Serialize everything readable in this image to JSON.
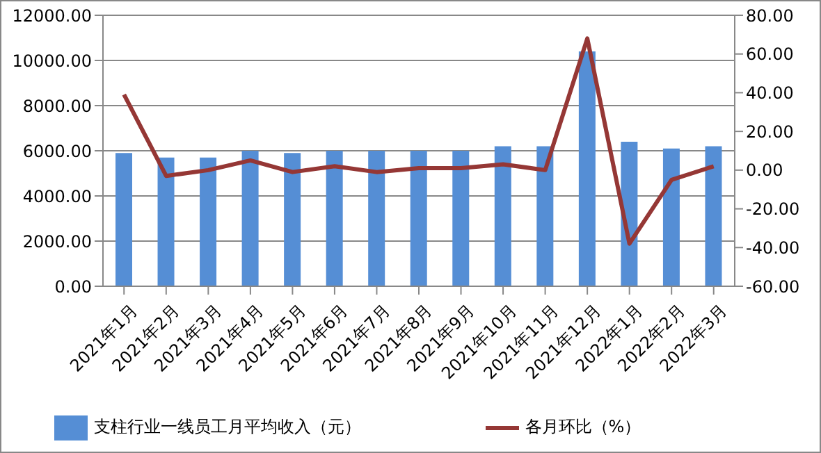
{
  "chart_data": {
    "type": "bar",
    "categories": [
      "2021年1月",
      "2021年2月",
      "2021年3月",
      "2021年4月",
      "2021年5月",
      "2021年6月",
      "2021年7月",
      "2021年8月",
      "2021年9月",
      "2021年10月",
      "2021年11月",
      "2021年12月",
      "2022年1月",
      "2022年2月",
      "2022年3月"
    ],
    "series": [
      {
        "name": "支柱行业一线员工月平均收入（元）",
        "color": "#558ed5",
        "values": [
          5900,
          5700,
          5700,
          6000,
          5900,
          6000,
          6000,
          6000,
          6000,
          6200,
          6200,
          10400,
          6400,
          6100,
          6200
        ]
      },
      {
        "name": "各月环比（%）",
        "type": "line",
        "axis": "y2",
        "color": "#953735",
        "values": [
          39,
          -3,
          0,
          5,
          -1,
          2,
          -1,
          1,
          1,
          3,
          0,
          68,
          -38,
          -5,
          2
        ]
      }
    ],
    "ylim": [
      0,
      12000
    ],
    "yticks": [
      {
        "value": 0,
        "label": "0.00"
      },
      {
        "value": 2000,
        "label": "2000.00"
      },
      {
        "value": 4000,
        "label": "4000.00"
      },
      {
        "value": 6000,
        "label": "6000.00"
      },
      {
        "value": 8000,
        "label": "8000.00"
      },
      {
        "value": 10000,
        "label": "10000.00"
      },
      {
        "value": 12000,
        "label": "12000.00"
      }
    ],
    "y2lim": [
      -60,
      80
    ],
    "y2ticks": [
      {
        "value": -60,
        "label": "-60.00"
      },
      {
        "value": -40,
        "label": "-40.00"
      },
      {
        "value": -20,
        "label": "-20.00"
      },
      {
        "value": 0,
        "label": "0.00"
      },
      {
        "value": 20,
        "label": "20.00"
      },
      {
        "value": 40,
        "label": "40.00"
      },
      {
        "value": 60,
        "label": "60.00"
      },
      {
        "value": 80,
        "label": "80.00"
      }
    ],
    "grid": "y",
    "legend": "bottom",
    "marker": "none",
    "line_style": "solid"
  }
}
